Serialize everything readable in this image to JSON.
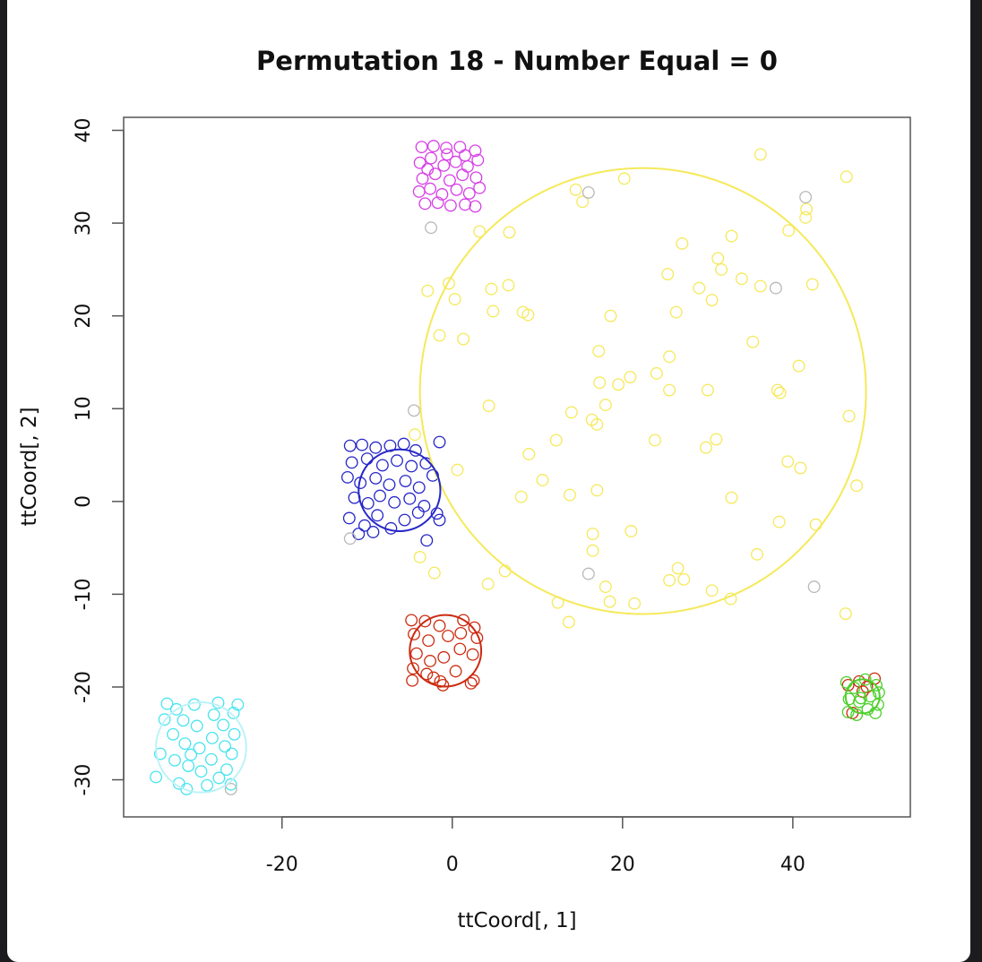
{
  "chart_data": {
    "type": "scatter",
    "title": "Permutation 18  - Number Equal =  0",
    "xlabel": "ttCoord[, 1]",
    "ylabel": "ttCoord[, 2]",
    "xlim": [
      -38.6,
      53.8
    ],
    "ylim": [
      -34,
      41.4
    ],
    "xticks": [
      -20,
      0,
      20,
      40
    ],
    "yticks": [
      -30,
      -20,
      -10,
      0,
      10,
      20,
      30,
      40
    ],
    "series": [
      {
        "color": "#f5e95a",
        "x": [
          20.2,
          14.5,
          15.3,
          36.2,
          46.3,
          41.6,
          41.5,
          39.5,
          3.2,
          6.7,
          27,
          32.8,
          31.2,
          31.6,
          25.3,
          34,
          29,
          36.2,
          42.3,
          -2.9,
          -0.4,
          0.3,
          4.6,
          6.6,
          4.8,
          8.3,
          8.9,
          18.6,
          26.3,
          30.5,
          -1.5,
          1.3,
          35.3,
          17.2,
          25.5,
          40.7,
          20.9,
          17.3,
          19.5,
          24,
          38.2,
          38.5,
          25.5,
          30,
          4.3,
          14,
          18,
          16.4,
          17,
          46.6,
          23.8,
          31,
          12.2,
          29.8,
          9,
          39.4,
          40.9,
          0.6,
          10.6,
          47.5,
          17,
          13.8,
          8.1,
          32.8,
          42.7,
          38.4,
          16.5,
          16.5,
          21,
          -3.8,
          35.8,
          -2.1,
          6.2,
          4.2,
          26.5,
          27.2,
          25.5,
          18,
          30.5,
          18.5,
          21.4,
          12.4,
          32.7,
          46.2,
          13.7,
          -4.4
        ],
        "values": [
          34.8,
          33.6,
          32.3,
          37.4,
          35,
          31.5,
          30.6,
          29.2,
          29.1,
          29,
          27.8,
          28.6,
          26.2,
          25,
          24.5,
          24,
          23,
          23.2,
          23.4,
          22.7,
          23.5,
          21.8,
          22.9,
          23.3,
          20.5,
          20.4,
          20.1,
          20,
          20.4,
          21.7,
          17.9,
          17.5,
          17.2,
          16.2,
          15.6,
          14.6,
          13.4,
          12.8,
          12.6,
          13.8,
          12,
          11.7,
          12,
          12,
          10.3,
          9.6,
          10.4,
          8.8,
          8.3,
          9.2,
          6.6,
          6.7,
          6.6,
          5.8,
          5.1,
          4.3,
          3.6,
          3.4,
          2.3,
          1.7,
          1.2,
          0.7,
          0.5,
          0.4,
          -2.5,
          -2.2,
          -3.5,
          -5.3,
          -3.2,
          -6,
          -5.7,
          -7.7,
          -7.5,
          -8.9,
          -7.2,
          -8.4,
          -8.5,
          -9.2,
          -9.6,
          -10.8,
          -11,
          -10.9,
          -10.5,
          -12.1,
          -13,
          7.2
        ]
      },
      {
        "color": "#d63ee6",
        "x": [
          -3.6,
          -2.2,
          -0.7,
          0.9,
          2.7,
          -3.8,
          -2.5,
          -1,
          0.4,
          1.8,
          3,
          -3.5,
          -2,
          -0.3,
          1.2,
          2.8,
          -3.9,
          -2.6,
          -1.2,
          0.5,
          2,
          3.2,
          -3.2,
          -1.7,
          -0.2,
          1.5,
          2.7,
          -0.6,
          1.5,
          -2.9
        ],
        "values": [
          38.2,
          38.3,
          38.1,
          38.2,
          37.8,
          36.5,
          37,
          36.2,
          36.6,
          36.1,
          36.8,
          34.8,
          35.3,
          34.6,
          35.2,
          34.9,
          33.4,
          33.7,
          33.1,
          33.6,
          33.2,
          33.8,
          32.1,
          32.2,
          31.9,
          32,
          31.8,
          37.4,
          37.3,
          35.8
        ]
      },
      {
        "color": "#2626c8",
        "x": [
          -12,
          -10.6,
          -9,
          -7.3,
          -5.7,
          -4.3,
          -1.5,
          -11.8,
          -10,
          -8.2,
          -6.5,
          -4.8,
          -3.1,
          -12.3,
          -10.8,
          -9,
          -7.4,
          -5.5,
          -3.9,
          -2.3,
          -11.5,
          -9.9,
          -8.5,
          -6.8,
          -5,
          -3.3,
          -1.8,
          -12.1,
          -10.3,
          -8.8,
          -7.2,
          -5.6,
          -4,
          -11,
          -9.3,
          -3,
          -1.5
        ],
        "values": [
          6,
          6.1,
          5.8,
          6,
          6.2,
          5.5,
          6.4,
          4.2,
          4.6,
          3.9,
          4.4,
          3.8,
          4.1,
          2.6,
          2,
          2.5,
          1.8,
          2.2,
          1.5,
          2.8,
          0.4,
          -0.2,
          0.6,
          -0.1,
          0.3,
          -0.5,
          -1.3,
          -1.8,
          -2.6,
          -1.5,
          -2.9,
          -2,
          -1.2,
          -3.5,
          -3.3,
          -4.2,
          -2
        ]
      },
      {
        "color": "#cc2a10",
        "x": [
          -4.8,
          -3.2,
          -1.5,
          1.3,
          2.6,
          -4.5,
          -2.8,
          -0.5,
          1,
          2.9,
          -4.2,
          -2.6,
          -1,
          0.9,
          2.4,
          -4.6,
          -3,
          -1.4,
          0.4,
          2.5,
          -4.7,
          -2.2,
          -1.1,
          2.2,
          47.8,
          48.7,
          49.6,
          46.5,
          48.2,
          47
        ],
        "values": [
          -12.8,
          -12.9,
          -13.4,
          -12.8,
          -13.6,
          -14.3,
          -15,
          -14.5,
          -14.2,
          -14.7,
          -16.4,
          -17.2,
          -16.8,
          -15.9,
          -16.5,
          -18,
          -18.6,
          -19.4,
          -18.3,
          -19.3,
          -19.3,
          -19,
          -19.8,
          -19.6,
          -19.4,
          -20,
          -19.1,
          -19.8,
          -20.5,
          -22.8
        ]
      },
      {
        "color": "#4cd02a",
        "x": [
          46.3,
          47.2,
          48.5,
          49.8,
          46.6,
          47.8,
          49.1,
          50,
          46.5,
          47.5,
          48.8,
          49.7,
          48,
          50.1
        ],
        "values": [
          -19.5,
          -20.1,
          -19.2,
          -19.8,
          -21.3,
          -21.6,
          -21,
          -21.9,
          -22.7,
          -23,
          -22.4,
          -22.8,
          -21.2,
          -20.6
        ]
      },
      {
        "color": "#48e4f0",
        "x": [
          -34.8,
          -34.3,
          -33.8,
          -33.5,
          -32.4,
          -32.8,
          -32.6,
          -32.1,
          -31.2,
          -31,
          -31.4,
          -31.6,
          -30.3,
          -30,
          -29.7,
          -29.5,
          -28.8,
          -28.3,
          -28.2,
          -28,
          -27.5,
          -26.9,
          -26.7,
          -26.5,
          -26,
          -25.9,
          -25.7,
          -25.6,
          -25.2,
          -27.4,
          -30.7
        ],
        "values": [
          -29.7,
          -27.2,
          -23.5,
          -21.8,
          -22.4,
          -25.1,
          -27.9,
          -30.4,
          -31,
          -28.5,
          -26.1,
          -23.6,
          -21.9,
          -24.2,
          -26.6,
          -29.1,
          -30.6,
          -27.8,
          -25.5,
          -23,
          -21.7,
          -24.1,
          -26.4,
          -28.9,
          -30.5,
          -27.2,
          -22.8,
          -25.1,
          -21.9,
          -29.8,
          -27.3
        ]
      },
      {
        "color": "#b8b8b8",
        "x": [
          16,
          41.5,
          38,
          -2.5,
          -4.5,
          16,
          42.5,
          -12,
          -26
        ],
        "values": [
          33.3,
          32.8,
          23,
          29.5,
          9.8,
          -7.8,
          -9.2,
          -4,
          -31
        ]
      }
    ],
    "circles": [
      {
        "color": "#f5e95a",
        "x": 22.4,
        "y": 11.9,
        "r": 26.2
      },
      {
        "color": "#2626c8",
        "x": -6.2,
        "y": 1.2,
        "r": 4.8
      },
      {
        "color": "#cc2a10",
        "x": -0.8,
        "y": -16.1,
        "r": 4.2
      },
      {
        "color": "#bdf2f7",
        "x": -29.5,
        "y": -26.5,
        "r": 5.3
      },
      {
        "color": "#4cd02a",
        "x": 48.2,
        "y": -21,
        "r": 2
      }
    ]
  }
}
